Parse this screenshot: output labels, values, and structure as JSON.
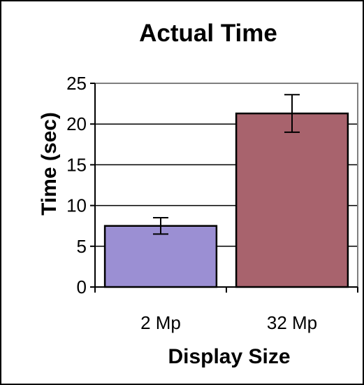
{
  "chart_data": {
    "type": "bar",
    "title": "Actual Time",
    "xlabel": "Display Size",
    "ylabel": "Time (sec)",
    "categories": [
      "2 Mp",
      "32 Mp"
    ],
    "values": [
      7.5,
      21.3
    ],
    "error_low": [
      6.5,
      19.0
    ],
    "error_high": [
      8.5,
      23.6
    ],
    "bar_colors": [
      "#9b8fd3",
      "#a8636d"
    ],
    "ylim": [
      0,
      25
    ],
    "yticks": [
      0,
      5,
      10,
      15,
      20,
      25
    ],
    "grid": true,
    "legend": "none",
    "plot_border_color": "#7f7f7f"
  }
}
